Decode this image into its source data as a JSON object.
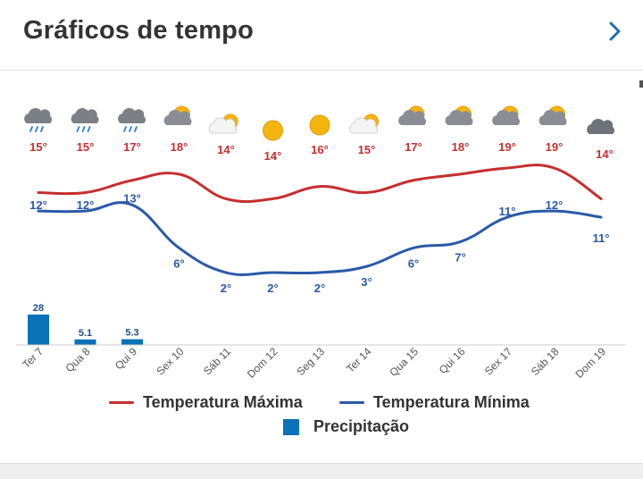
{
  "header": {
    "title": "Gráficos de tempo",
    "next_icon": "chevron-right-icon"
  },
  "colors": {
    "max": "#c62f2f",
    "min": "#2a5aa8",
    "precip": "#0a72b8",
    "text": "#333333"
  },
  "chart_data": {
    "type": "line",
    "categories": [
      "Ter 7",
      "Qua 8",
      "Qui 9",
      "Sex 10",
      "Sáb 11",
      "Dom 12",
      "Seg 13",
      "Ter 14",
      "Qua 15",
      "Qui 16",
      "Sex 17",
      "Sáb 18",
      "Dom 19"
    ],
    "weather_icons": [
      "rain-cloud",
      "rain-cloud",
      "rain-cloud",
      "sun-cloud",
      "sun-behind-cloud",
      "sun",
      "sun",
      "sun-behind-cloud",
      "sun-cloud",
      "sun-cloud",
      "sun-cloud",
      "sun-cloud",
      "cloud"
    ],
    "series": [
      {
        "name": "Temperatura Máxima",
        "values": [
          15,
          15,
          17,
          18,
          14,
          14,
          16,
          15,
          17,
          18,
          19,
          19,
          14
        ],
        "labels": [
          "15°",
          "15°",
          "17°",
          "18°",
          "14°",
          "14°",
          "16°",
          "15°",
          "17°",
          "18°",
          "19°",
          "19°",
          "14°"
        ]
      },
      {
        "name": "Temperatura Mínima",
        "values": [
          12,
          12,
          13,
          6,
          2,
          2,
          2,
          3,
          6,
          7,
          11,
          12,
          11
        ],
        "labels": [
          "12°",
          "12°",
          "13°",
          "6°",
          "2°",
          "2°",
          "2°",
          "3°",
          "6°",
          "7°",
          "11°",
          "12°",
          "11°"
        ]
      },
      {
        "name": "Precipitação",
        "type": "bar",
        "values": [
          28,
          5.1,
          5.3,
          0,
          0,
          0,
          0,
          0,
          0,
          0,
          0,
          0,
          0
        ],
        "labels": [
          "28",
          "5.1",
          "5.3",
          "",
          "",
          "",
          "",
          "",
          "",
          "",
          "",
          "",
          ""
        ]
      }
    ],
    "legend": [
      "Temperatura Máxima",
      "Temperatura Mínima",
      "Precipitação"
    ],
    "legend_placement": "bottom",
    "grid": false
  }
}
